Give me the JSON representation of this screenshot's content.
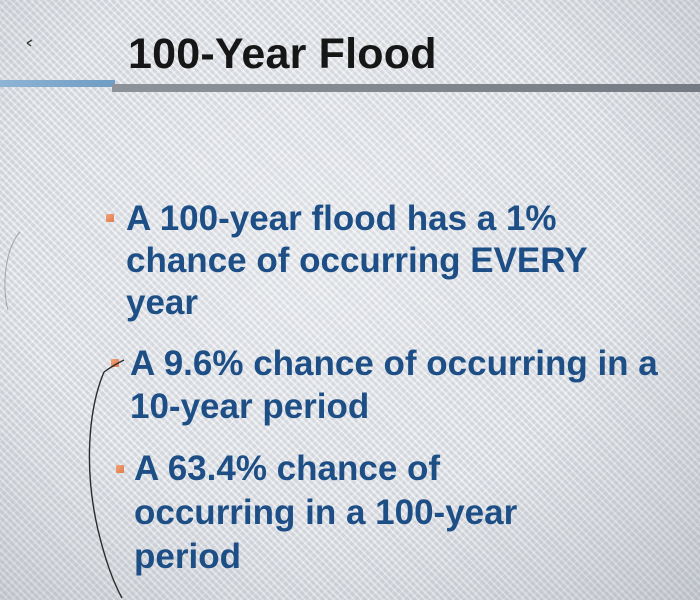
{
  "slide": {
    "title": "100-Year Flood",
    "bullets": [
      "A 100-year flood has a 1% chance of occurring EVERY year",
      "A 9.6% chance of occurring in a 10-year period",
      "A 63.4% chance of occurring in a 100-year period"
    ]
  },
  "colors": {
    "title": "#161616",
    "bullet_text": "#1d4f86",
    "bullet_marker": "#e0784a",
    "title_rule_left": "#6f9cc3",
    "title_rule_right": "#747b82"
  }
}
